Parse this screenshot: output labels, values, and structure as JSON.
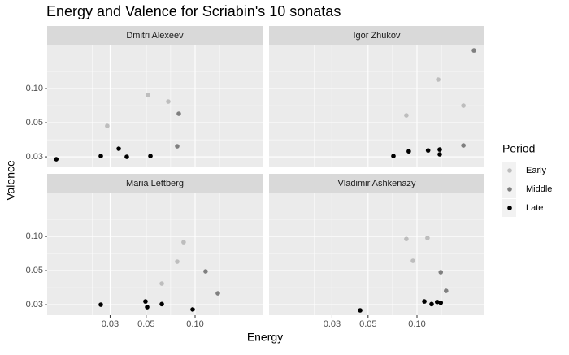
{
  "chart_data": {
    "type": "scatter",
    "title": "Energy and Valence for Scriabin's 10 sonatas",
    "xlabel": "Energy",
    "ylabel": "Valence",
    "legend_title": "Period",
    "log_x": true,
    "log_y": true,
    "grid": true,
    "legend": "right",
    "xlim": [
      0.0123,
      0.26
    ],
    "ylim": [
      0.0202,
      0.244
    ],
    "xticks": [
      0.03,
      0.05,
      {
        "value": 0.1,
        "label": "0.10"
      }
    ],
    "yticks": [
      {
        "value": 0.025,
        "label": "0.03"
      },
      0.05,
      {
        "value": 0.1,
        "label": "0.10"
      }
    ],
    "series": [
      {
        "name": "Early",
        "color": "#bdbdbd"
      },
      {
        "name": "Middle",
        "color": "#7f7f7f"
      },
      {
        "name": "Late",
        "color": "#000000"
      }
    ],
    "facets": [
      {
        "title": "Dmitri Alexeev",
        "series": [
          {
            "x": [
              0.0513,
              0.0684,
              0.0288
            ],
            "y": [
              0.0877,
              0.0768,
              0.0468
            ]
          },
          {
            "x": [
              0.0794,
              0.0776
            ],
            "y": [
              0.06,
              0.031
            ]
          },
          {
            "x": [
              0.014,
              0.0263,
              0.0339,
              0.038,
              0.0531
            ],
            "y": [
              0.0238,
              0.0254,
              0.0295,
              0.025,
              0.0254
            ]
          }
        ]
      },
      {
        "title": "Igor Zhukov",
        "series": [
          {
            "x": [
              0.135,
              0.193,
              0.086
            ],
            "y": [
              0.12,
              0.0707,
              0.058
            ]
          },
          {
            "x": [
              0.224,
              0.193
            ],
            "y": [
              0.217,
              0.0315
            ]
          },
          {
            "x": [
              0.0716,
              0.089,
              0.117,
              0.138,
              0.138
            ],
            "y": [
              0.0254,
              0.028,
              0.0285,
              0.029,
              0.0263
            ]
          }
        ]
      },
      {
        "title": "Maria Lettberg",
        "series": [
          {
            "x": [
              0.085,
              0.0776,
              0.0624
            ],
            "y": [
              0.089,
              0.06,
              0.0384
            ]
          },
          {
            "x": [
              0.116,
              0.138
            ],
            "y": [
              0.0492,
              0.0315
            ]
          },
          {
            "x": [
              0.0263,
              0.0495,
              0.0507,
              0.0624,
              0.0966
            ],
            "y": [
              0.025,
              0.0267,
              0.0238,
              0.0253,
              0.0227
            ]
          }
        ]
      },
      {
        "title": "Vladimir Ashkenazy",
        "series": [
          {
            "x": [
              0.086,
              0.116,
              0.0944
            ],
            "y": [
              0.095,
              0.0968,
              0.061
            ]
          },
          {
            "x": [
              0.14,
              0.151
            ],
            "y": [
              0.0484,
              0.0331
            ]
          },
          {
            "x": [
              0.0447,
              0.111,
              0.123,
              0.133,
              0.14
            ],
            "y": [
              0.0223,
              0.0267,
              0.0253,
              0.0264,
              0.026
            ]
          }
        ]
      }
    ]
  }
}
